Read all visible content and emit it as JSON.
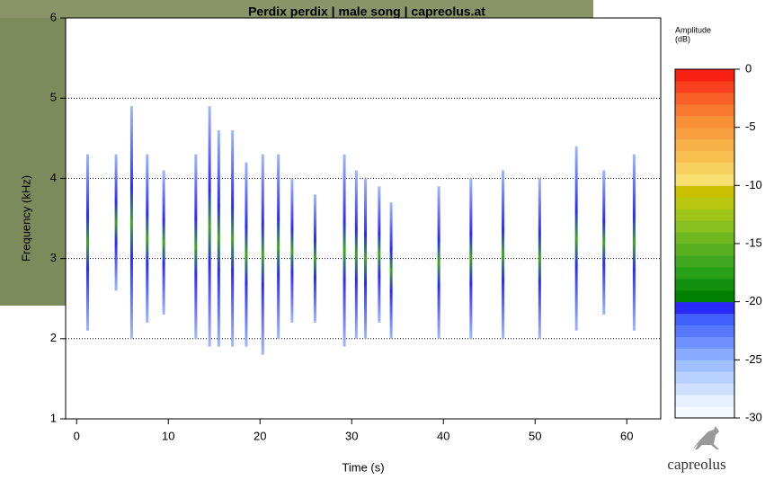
{
  "chart_data": [
    {
      "type": "spectrogram",
      "title": "Perdix perdix | male song | capreolus.at",
      "x_label": "Time (s)",
      "y_label": "Frequency (kHz)",
      "xlim": [
        -1.2,
        63.7
      ],
      "xticks": [
        0,
        10,
        20,
        30,
        40,
        50,
        60
      ],
      "ylim": [
        1,
        6
      ],
      "yticks": [
        1,
        2,
        3,
        4,
        5,
        6
      ],
      "grid": true,
      "x": [
        1.2,
        4.3,
        6.0,
        7.7,
        9.5,
        13.0,
        14.5,
        15.5,
        17.0,
        18.5,
        20.3,
        22.0,
        23.5,
        26.0,
        29.2,
        30.5,
        31.5,
        33.0,
        34.3,
        39.5,
        43.0,
        46.5,
        50.5,
        54.5,
        57.5,
        60.8
      ],
      "freq_low": [
        2.1,
        2.6,
        2.0,
        2.2,
        2.3,
        2.0,
        1.9,
        1.9,
        1.9,
        1.9,
        1.8,
        2.0,
        2.2,
        2.2,
        1.9,
        2.0,
        2.0,
        2.2,
        2.0,
        2.0,
        2.0,
        2.0,
        2.0,
        2.1,
        2.3,
        2.1
      ],
      "freq_high": [
        4.3,
        4.3,
        4.9,
        4.3,
        4.1,
        4.3,
        4.9,
        4.6,
        4.6,
        4.2,
        4.3,
        4.3,
        4.0,
        3.8,
        4.3,
        4.1,
        4.0,
        3.9,
        3.7,
        3.9,
        4.0,
        4.1,
        4.0,
        4.4,
        4.1,
        4.3
      ]
    },
    {
      "type": "colorbar",
      "title": "Amplitude",
      "unit": "(dB)",
      "ylim": [
        -30,
        0
      ],
      "yticks": [
        0,
        -5,
        -10,
        -15,
        -20,
        -25,
        -30
      ],
      "colors": [
        "#f5faff",
        "#e6f0ff",
        "#cfe0ff",
        "#b8d0ff",
        "#a0bfff",
        "#88aaff",
        "#7090ff",
        "#5878ff",
        "#4060ff",
        "#2a2aff",
        "#008000",
        "#149010",
        "#28a018",
        "#40a820",
        "#58b020",
        "#70b820",
        "#88c020",
        "#a0c418",
        "#b8c810",
        "#c8c000",
        "#f8e070",
        "#f8d060",
        "#f8c050",
        "#f8b048",
        "#f8a040",
        "#f89038",
        "#f87830",
        "#f86028",
        "#f84020",
        "#f82010"
      ]
    }
  ],
  "logo": "capreolus"
}
